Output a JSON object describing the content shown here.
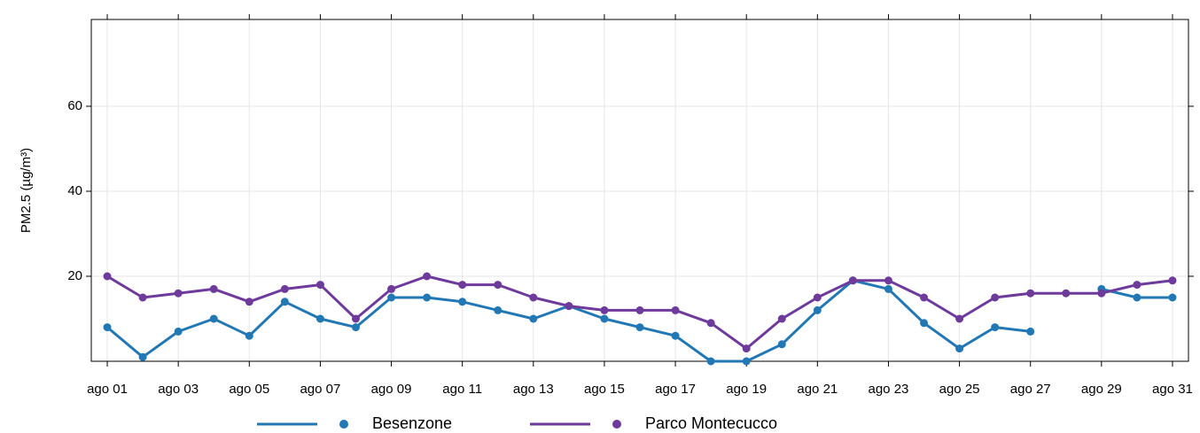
{
  "chart_data": {
    "type": "line",
    "y_label": "PM2.5 (µg/m³)",
    "categories": [
      "ago 01",
      null,
      "ago 03",
      null,
      "ago 05",
      null,
      "ago 07",
      null,
      "ago 09",
      null,
      "ago 11",
      null,
      "ago 13",
      null,
      "ago 15",
      null,
      "ago 17",
      null,
      "ago 19",
      null,
      "ago 21",
      null,
      "ago 23",
      null,
      "ago 25",
      null,
      "ago 27",
      null,
      "ago 29",
      null,
      "ago 31"
    ],
    "series": [
      {
        "name": "Besenzone",
        "color": "#2278b5",
        "values": [
          8,
          1,
          7,
          10,
          6,
          14,
          10,
          8,
          15,
          15,
          14,
          12,
          10,
          13,
          10,
          8,
          6,
          0,
          0,
          4,
          12,
          19,
          17,
          9,
          3,
          8,
          7,
          null,
          17,
          15,
          15
        ]
      },
      {
        "name": "Parco Montecucco",
        "color": "#6e3a9b",
        "values": [
          20,
          15,
          16,
          17,
          14,
          17,
          18,
          10,
          17,
          20,
          18,
          18,
          15,
          13,
          12,
          12,
          12,
          9,
          3,
          10,
          15,
          19,
          19,
          15,
          10,
          15,
          16,
          16,
          16,
          18,
          19
        ]
      }
    ],
    "ylim": [
      0,
      80
    ],
    "yticks": [
      20,
      40,
      60
    ],
    "grid": true
  }
}
